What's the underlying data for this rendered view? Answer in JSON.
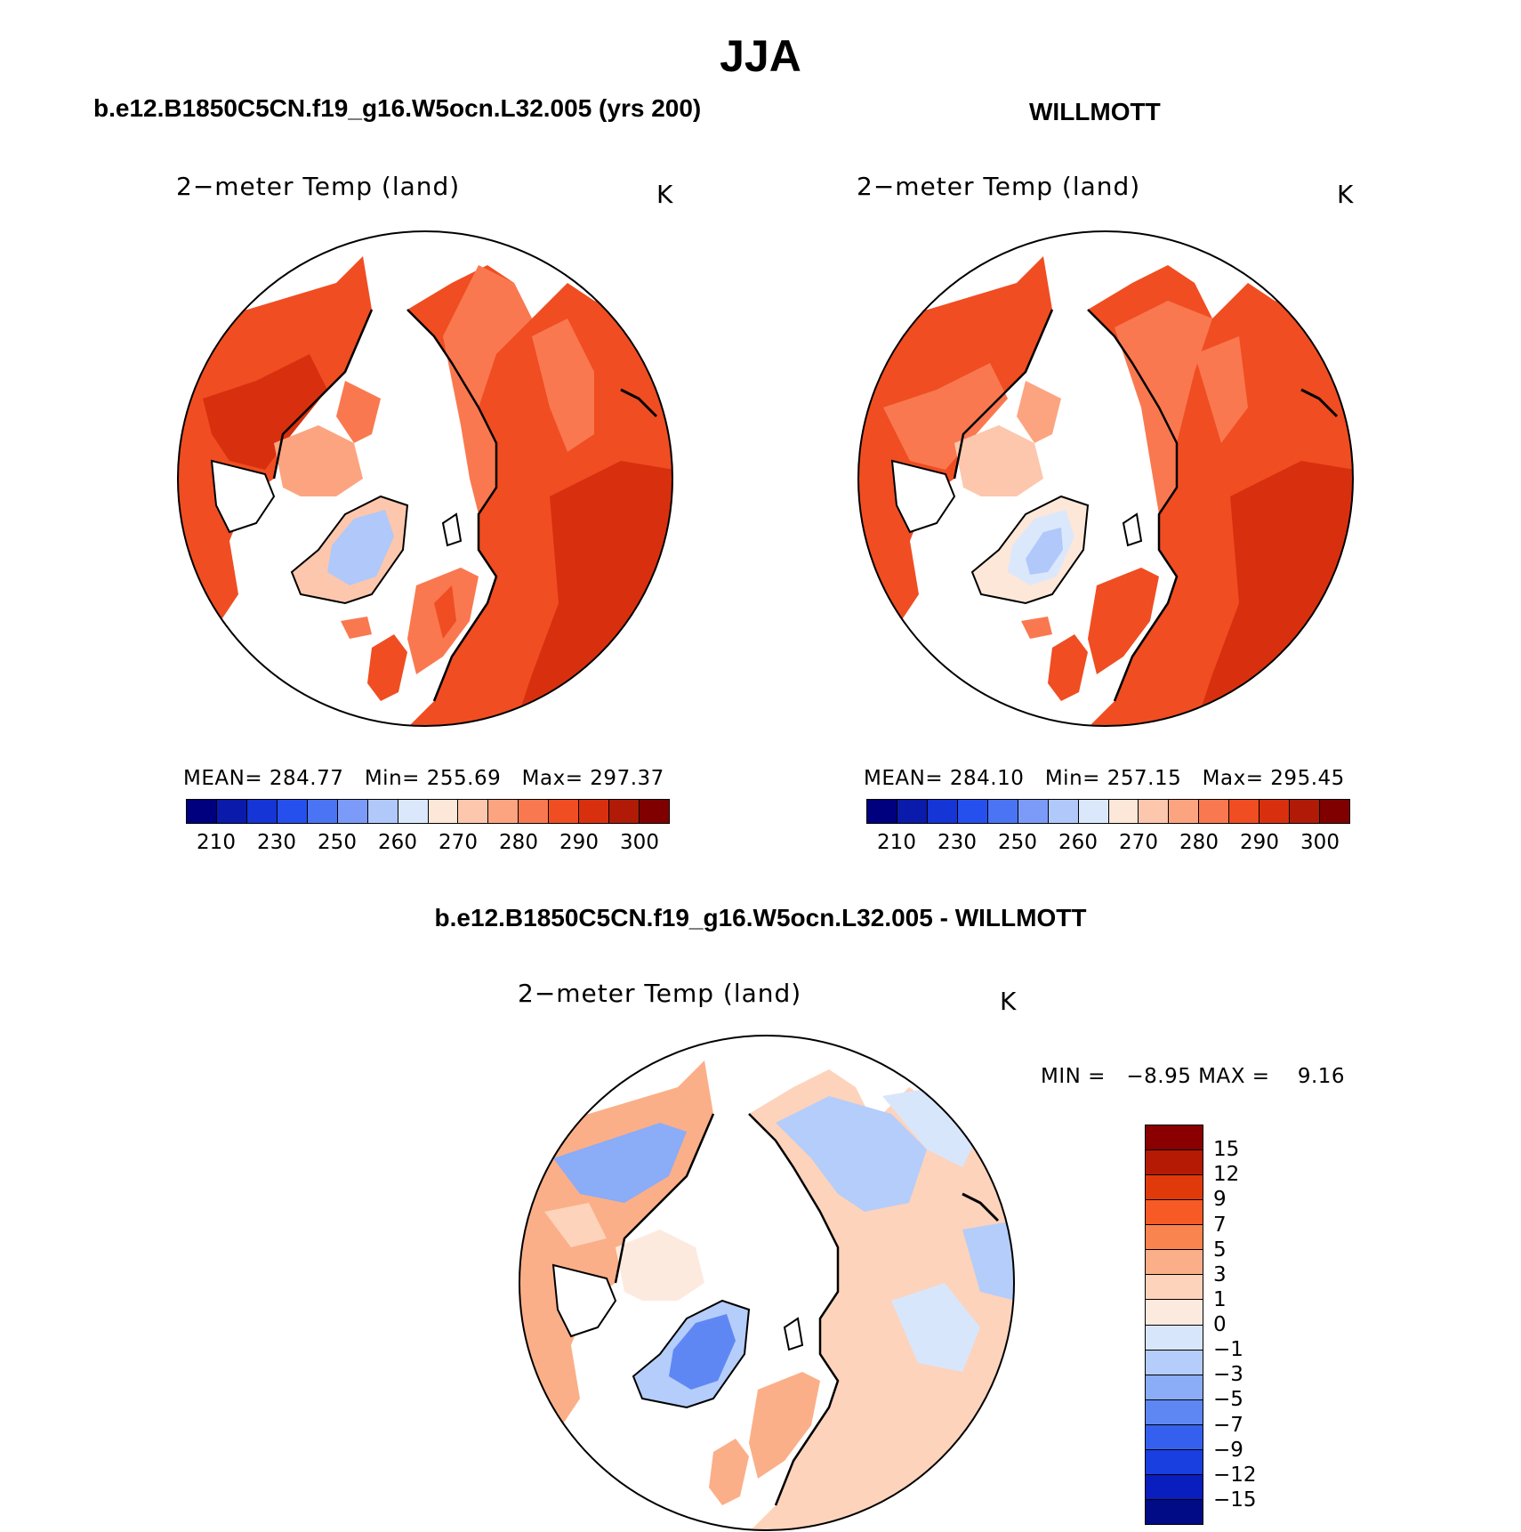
{
  "title": "JJA",
  "panels": [
    {
      "case_title": "b.e12.B1850C5CN.f19_g16.W5ocn.L32.005 (yrs 200)",
      "variable": "2−meter Temp (land)",
      "units": "K",
      "stats": {
        "mean_label": "MEAN=",
        "mean": "284.77",
        "min_label": "Min=",
        "min": "255.69",
        "max_label": "Max=",
        "max": "297.37"
      }
    },
    {
      "case_title": "WILLMOTT",
      "variable": "2−meter Temp (land)",
      "units": "K",
      "stats": {
        "mean_label": "MEAN=",
        "mean": "284.10",
        "min_label": "Min=",
        "min": "257.15",
        "max_label": "Max=",
        "max": "295.45"
      }
    }
  ],
  "colorbar_abs": {
    "colors": [
      "#00007f",
      "#0a1aaa",
      "#1535d6",
      "#2650ee",
      "#4a74f4",
      "#7c9bf8",
      "#b0c8fa",
      "#dbe8fc",
      "#fde7d8",
      "#fcc7ad",
      "#fca480",
      "#fa7850",
      "#f04d22",
      "#d8300f",
      "#b01a06",
      "#800000"
    ],
    "ticks": [
      "210",
      "230",
      "250",
      "260",
      "270",
      "280",
      "290",
      "300"
    ]
  },
  "diff_panel": {
    "case_title": "b.e12.B1850C5CN.f19_g16.W5ocn.L32.005 - WILLMOTT",
    "variable": "2−meter Temp (land)",
    "units": "K",
    "min_label": "MIN =",
    "min": "−8.95",
    "max_label": "MAX =",
    "max": "9.16"
  },
  "colorbar_diff": {
    "colors": [
      "#8a0000",
      "#b51a04",
      "#e03a0a",
      "#f75a24",
      "#fa8450",
      "#fbaf88",
      "#fdd3bb",
      "#fdeadf",
      "#d8e6fb",
      "#b4cdfa",
      "#8bacf7",
      "#5f87f4",
      "#3560ef",
      "#1a3fe0",
      "#0a1ebf",
      "#000b85"
    ],
    "ticks": [
      "15",
      "12",
      "9",
      "7",
      "5",
      "3",
      "1",
      "0",
      "−1",
      "−3",
      "−5",
      "−7",
      "−9",
      "−12",
      "−15"
    ]
  }
}
